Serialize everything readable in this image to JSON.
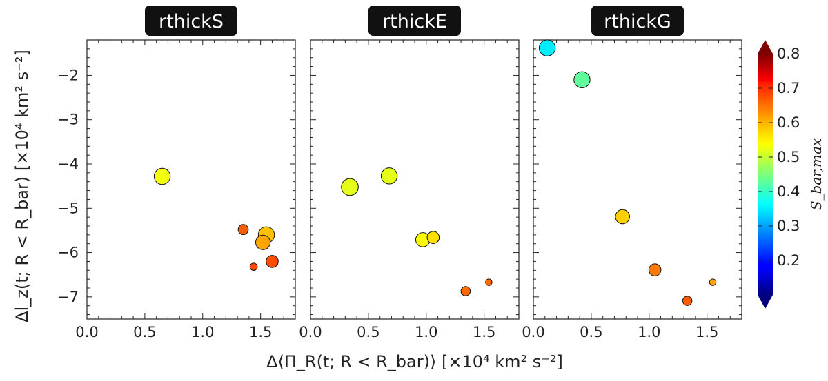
{
  "chart_data": {
    "type": "scatter",
    "xlabel": "Δ⟨Π_R(t; R < R_bar)⟩ [×10⁴ km² s⁻²]",
    "ylabel": "Δl_z(t; R < R_bar) [×10⁴ km² s⁻²]",
    "xlim": [
      0.0,
      1.8
    ],
    "ylim": [
      -7.5,
      -1.2
    ],
    "x_ticks": [
      "0.0",
      "0.5",
      "1.0",
      "1.5"
    ],
    "x_tick_values": [
      0.0,
      0.5,
      1.0,
      1.5
    ],
    "y_ticks": [
      "−2",
      "−3",
      "−4",
      "−5",
      "−6",
      "−7"
    ],
    "y_tick_values": [
      -2,
      -3,
      -4,
      -5,
      -6,
      -7
    ],
    "grid": false,
    "colorbar": {
      "label": "S_bar,max",
      "colormap": "jet",
      "range": [
        0.1,
        0.8
      ],
      "ticks": [
        "0.2",
        "0.3",
        "0.4",
        "0.5",
        "0.6",
        "0.7",
        "0.8"
      ],
      "tick_values": [
        0.2,
        0.3,
        0.4,
        0.5,
        0.6,
        0.7,
        0.8
      ],
      "extend": "both"
    },
    "panels": [
      {
        "title": "rthickS",
        "points": [
          {
            "x": 0.65,
            "y": -4.28,
            "s": 0.53,
            "size": 3
          },
          {
            "x": 1.35,
            "y": -5.48,
            "s": 0.65,
            "size": 1.5
          },
          {
            "x": 1.55,
            "y": -5.6,
            "s": 0.58,
            "size": 3
          },
          {
            "x": 1.52,
            "y": -5.77,
            "s": 0.6,
            "size": 2.6
          },
          {
            "x": 1.44,
            "y": -6.32,
            "s": 0.66,
            "size": 0.8
          },
          {
            "x": 1.6,
            "y": -6.2,
            "s": 0.66,
            "size": 2
          }
        ]
      },
      {
        "title": "rthickE",
        "points": [
          {
            "x": 0.34,
            "y": -4.52,
            "s": 0.52,
            "size": 3.2
          },
          {
            "x": 0.68,
            "y": -4.27,
            "s": 0.52,
            "size": 3
          },
          {
            "x": 0.97,
            "y": -5.71,
            "s": 0.54,
            "size": 2.5
          },
          {
            "x": 1.06,
            "y": -5.66,
            "s": 0.56,
            "size": 2
          },
          {
            "x": 1.34,
            "y": -6.87,
            "s": 0.64,
            "size": 1.3
          },
          {
            "x": 1.54,
            "y": -6.67,
            "s": 0.64,
            "size": 0.6
          }
        ]
      },
      {
        "title": "rthickG",
        "points": [
          {
            "x": 0.12,
            "y": -1.38,
            "s": 0.35,
            "size": 3
          },
          {
            "x": 0.42,
            "y": -2.1,
            "s": 0.43,
            "size": 3
          },
          {
            "x": 0.77,
            "y": -5.19,
            "s": 0.57,
            "size": 2.5
          },
          {
            "x": 1.05,
            "y": -6.39,
            "s": 0.63,
            "size": 2
          },
          {
            "x": 1.33,
            "y": -7.09,
            "s": 0.65,
            "size": 1.3
          },
          {
            "x": 1.55,
            "y": -6.67,
            "s": 0.6,
            "size": 0.6
          }
        ]
      }
    ]
  }
}
